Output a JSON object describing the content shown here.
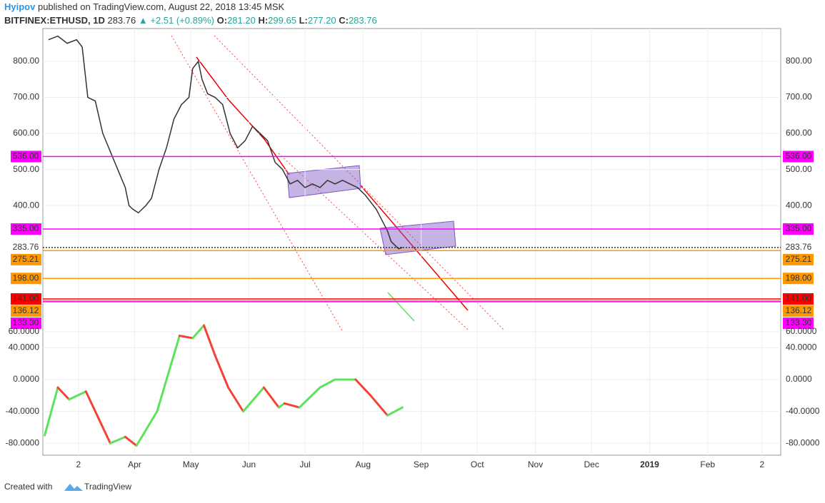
{
  "header": {
    "author": "Hyipov",
    "published": "published on TradingView.com, August 22, 2018 13:45 MSK",
    "symbol": "BITFINEX:ETHUSD, 1D",
    "last": "283.76",
    "change": "+2.51 (+0.89%)",
    "o_label": "O:",
    "o": "281.20",
    "h_label": "H:",
    "h": "299.65",
    "l_label": "L:",
    "l": "277.20",
    "c_label": "C:",
    "c": "283.76"
  },
  "footer": {
    "created": "Created with",
    "brand": "TradingView"
  },
  "chart_data": [
    {
      "type": "line",
      "xticks": [
        {
          "value": 1,
          "label": "2"
        },
        {
          "value": 31,
          "label": "Apr"
        },
        {
          "value": 61,
          "label": "May"
        },
        {
          "value": 92,
          "label": "Jun"
        },
        {
          "value": 122,
          "label": "Jul"
        },
        {
          "value": 153,
          "label": "Aug"
        },
        {
          "value": 184,
          "label": "Sep"
        },
        {
          "value": 214,
          "label": "Oct"
        },
        {
          "value": 245,
          "label": "Nov"
        },
        {
          "value": 275,
          "label": "Dec"
        },
        {
          "value": 306,
          "label": "2019"
        },
        {
          "value": 337,
          "label": "Feb"
        },
        {
          "value": 366,
          "label": "2"
        }
      ],
      "xlim": [
        -18,
        376
      ],
      "ylim": [
        50,
        891
      ],
      "yticks": [
        {
          "value": 400,
          "label": "400.00"
        },
        {
          "value": 500,
          "label": "500.00"
        },
        {
          "value": 600,
          "label": "600.00"
        },
        {
          "value": 700,
          "label": "700.00"
        },
        {
          "value": 800,
          "label": "800.00"
        }
      ],
      "grid": true,
      "series": [
        {
          "color": "#333333",
          "x": [
            -15,
            -10,
            -5,
            0,
            3,
            6,
            10,
            14,
            18,
            22,
            26,
            28,
            30,
            33,
            37,
            40,
            44,
            48,
            52,
            56,
            60,
            62,
            65,
            67,
            70,
            74,
            78,
            82,
            86,
            90,
            94,
            98,
            102,
            106,
            110,
            114,
            118,
            122,
            126,
            130,
            134,
            138,
            142,
            146,
            150,
            154,
            157,
            160,
            163,
            166,
            168,
            170,
            172,
            174
          ],
          "values": [
            860,
            870,
            850,
            860,
            840,
            700,
            690,
            600,
            550,
            500,
            450,
            400,
            390,
            380,
            400,
            420,
            500,
            560,
            640,
            680,
            700,
            780,
            800,
            750,
            710,
            700,
            680,
            600,
            560,
            580,
            620,
            600,
            580,
            520,
            500,
            460,
            470,
            450,
            460,
            450,
            470,
            460,
            470,
            460,
            450,
            430,
            410,
            390,
            360,
            330,
            300,
            290,
            280,
            284
          ]
        }
      ],
      "levels": {
        "values": [
          536,
          335,
          283.76,
          275.21,
          198,
          141,
          136.12,
          133.3
        ],
        "value_labels": [
          "536.00",
          "335.00",
          "283.76",
          "275.21",
          "198.00",
          "141.00",
          "136.12",
          "133.30"
        ],
        "colors": [
          "#ff00ff",
          "#ff00ff",
          "#333333",
          "#ff9800",
          "#ff9800",
          "#ff0000",
          "#ff9800",
          "#ff00ff"
        ]
      }
    },
    {
      "type": "line",
      "xlim": [
        -18,
        376
      ],
      "ylim": [
        -95,
        60
      ],
      "yticks": [
        {
          "value": -80,
          "label": "-80.0000"
        },
        {
          "value": -40,
          "label": "-40.0000"
        },
        {
          "value": 0,
          "label": "0.0000"
        },
        {
          "value": 40,
          "label": "40.0000"
        },
        {
          "value": 60,
          "label": "60.0000"
        }
      ],
      "grid": true,
      "series": [
        {
          "up_color": "#5ce35c",
          "down_color": "#f44336",
          "x": [
            -17,
            -10,
            -4,
            5,
            18,
            26,
            32,
            43,
            55,
            62,
            68,
            74,
            81,
            89,
            100,
            108,
            111,
            119,
            130,
            138,
            149,
            157,
            166,
            174
          ],
          "values": [
            -70,
            -10,
            -25,
            -15,
            -80,
            -72,
            -83,
            -40,
            55,
            52,
            68,
            30,
            -10,
            -40,
            -10,
            -35,
            -30,
            -35,
            -10,
            0,
            0,
            -20,
            -45,
            -35
          ]
        }
      ]
    }
  ]
}
